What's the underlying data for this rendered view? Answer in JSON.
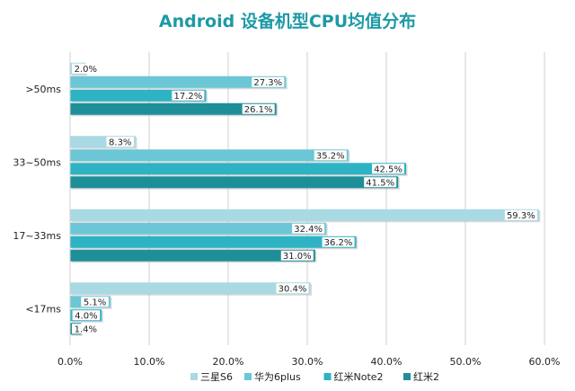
{
  "chart_data": {
    "type": "bar",
    "orientation": "horizontal",
    "title": "Android 设备机型CPU均值分布",
    "categories": [
      ">50ms",
      "33~50ms",
      "17~33ms",
      "<17ms"
    ],
    "series": [
      {
        "name": "三星S6",
        "values": [
          2.0,
          8.3,
          59.3,
          30.4
        ],
        "labels": [
          "2.0%",
          "8.3%",
          "59.3%",
          "30.4%"
        ]
      },
      {
        "name": "华为6plus",
        "values": [
          27.3,
          35.2,
          32.4,
          5.1
        ],
        "labels": [
          "27.3%",
          "35.2%",
          "32.4%",
          "5.1%"
        ]
      },
      {
        "name": "红米Note2",
        "values": [
          17.2,
          42.5,
          36.2,
          4.0
        ],
        "labels": [
          "17.2%",
          "42.5%",
          "36.2%",
          "4.0%"
        ]
      },
      {
        "name": "红米2",
        "values": [
          26.1,
          41.5,
          31.0,
          1.4
        ],
        "labels": [
          "26.1%",
          "41.5%",
          "31.0%",
          "1.4%"
        ]
      }
    ],
    "xlim": [
      0,
      60
    ],
    "x_ticks": [
      "0.0%",
      "10.0%",
      "20.0%",
      "30.0%",
      "40.0%",
      "50.0%",
      "60.0%"
    ],
    "colors": [
      "#a9d9e3",
      "#6bc7d6",
      "#2eb3c4",
      "#1e8f99"
    ],
    "grid": true,
    "legend_position": "bottom"
  }
}
